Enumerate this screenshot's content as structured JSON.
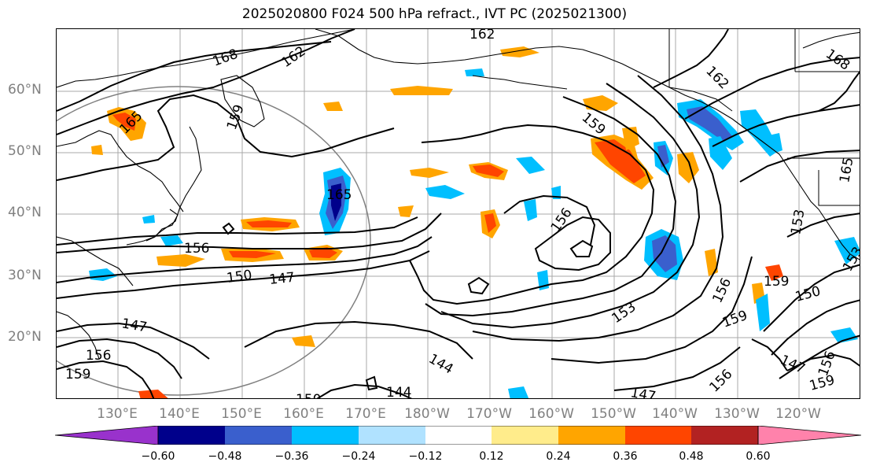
{
  "title": "2025020800 F024 500 hPa refract., IVT PC (2025021300)",
  "axes": {
    "lat_labels": [
      "60°N",
      "50°N",
      "40°N",
      "30°N",
      "20°N"
    ],
    "lon_labels": [
      "130°E",
      "140°E",
      "150°E",
      "160°E",
      "170°E",
      "180°W",
      "170°W",
      "160°W",
      "150°W",
      "140°W",
      "130°W",
      "120°W"
    ]
  },
  "contour_labels": [
    "162",
    "168",
    "162",
    "159",
    "165",
    "165",
    "156",
    "150",
    "147",
    "156",
    "162",
    "159",
    "168",
    "165",
    "153",
    "153",
    "156",
    "159",
    "153",
    "150",
    "147",
    "147",
    "156",
    "159",
    "144",
    "144",
    "150",
    "147",
    "156",
    "159",
    "156",
    "159"
  ],
  "colorbar": {
    "ticks": [
      "−0.60",
      "−0.48",
      "−0.36",
      "−0.24",
      "−0.12",
      "0.12",
      "0.24",
      "0.36",
      "0.48",
      "0.60"
    ],
    "colors": [
      "#9932cc",
      "#00008b",
      "#3a5fcd",
      "#00bfff",
      "#b0e2ff",
      "#ffffff",
      "#ffec8b",
      "#ffa500",
      "#ff4500",
      "#b22222",
      "#ff82ab"
    ],
    "extend": "both"
  },
  "colors": {
    "contour": "#000000",
    "coastline": "#000000",
    "gridline": "#a9a9a9",
    "axis_label": "#808080",
    "range_circle": "#808080"
  }
}
